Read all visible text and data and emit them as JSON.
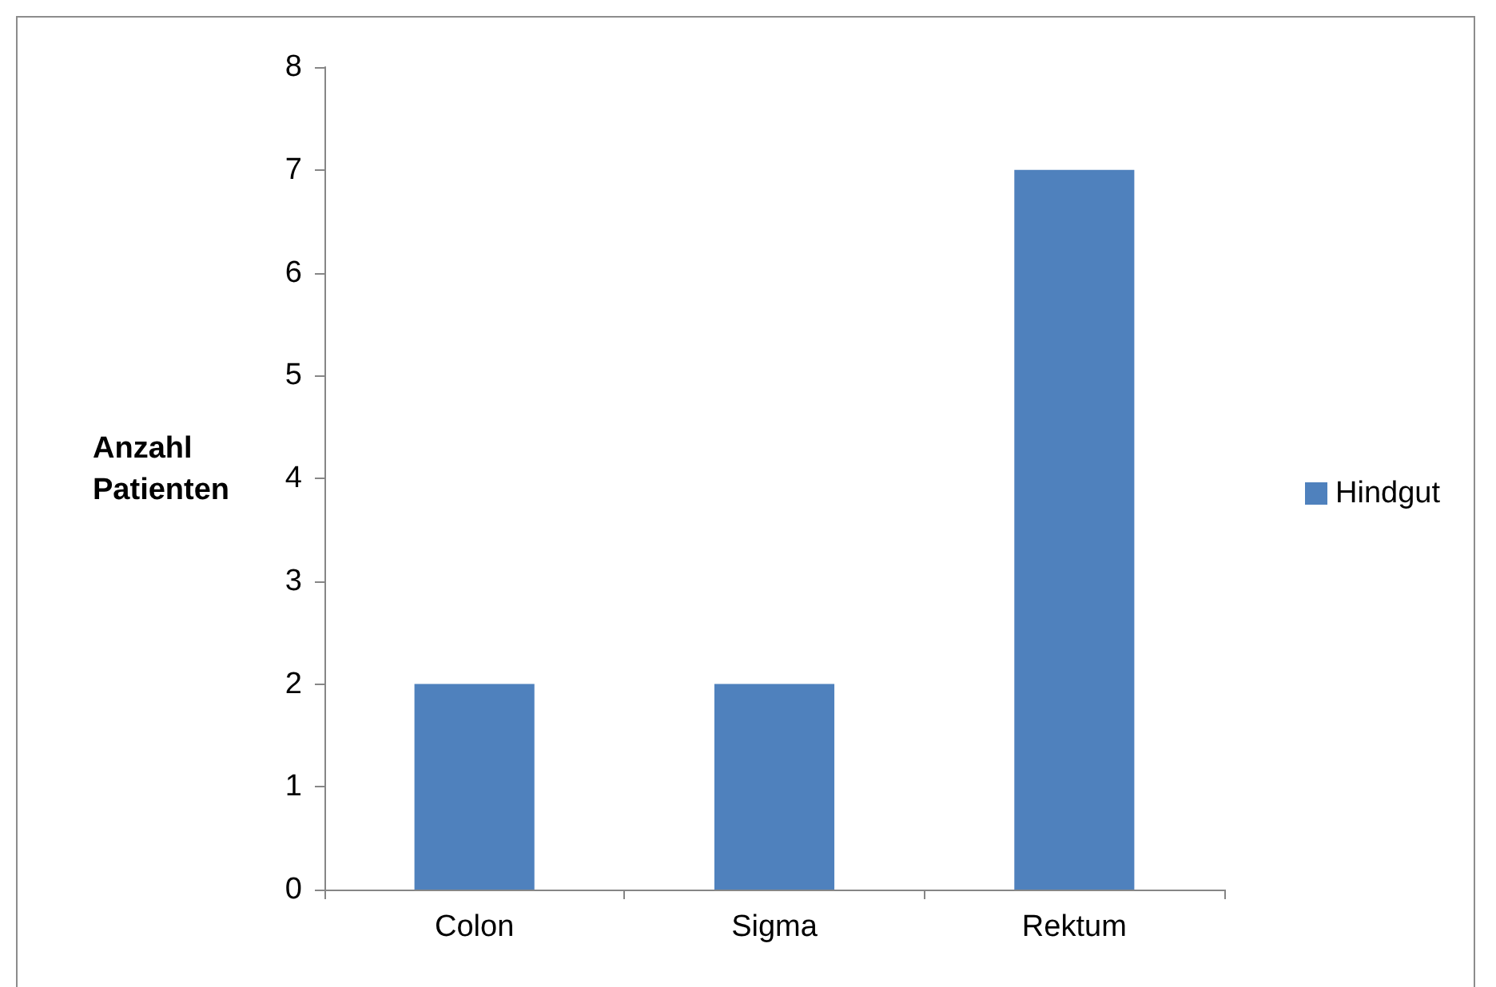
{
  "chart_data": {
    "type": "bar",
    "ylabel": "Anzahl Patienten",
    "categories": [
      "Colon",
      "Sigma",
      "Rektum"
    ],
    "series": [
      {
        "name": "Hindgut",
        "color": "#4f81bd",
        "values": [
          2,
          2,
          7
        ]
      }
    ],
    "ylim": [
      0,
      8
    ],
    "yticks": [
      0,
      1,
      2,
      3,
      4,
      5,
      6,
      7,
      8
    ],
    "grid": false,
    "legend": "right"
  }
}
